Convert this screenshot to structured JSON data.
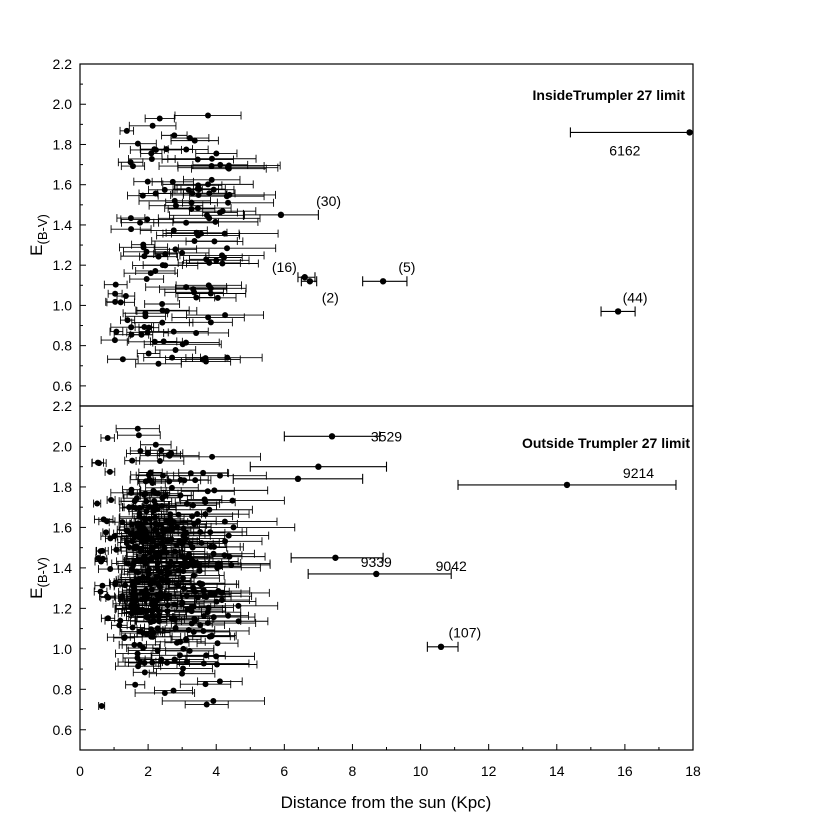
{
  "chart_data": [
    {
      "type": "scatter",
      "panel": "top",
      "title": "InsideTrumpler 27 limit",
      "xlabel": "",
      "ylabel": "E(B-V)",
      "xlim": [
        0,
        18
      ],
      "ylim": [
        0.5,
        2.2
      ],
      "y_ticks": [
        "0.6",
        "0.8",
        "1.0",
        "1.2",
        "1.4",
        "1.6",
        "1.8",
        "2.0",
        "2.2"
      ],
      "grid": false,
      "error_bars": "horizontal",
      "points": [
        {
          "x": 17.9,
          "y": 1.86,
          "xmin": 14.4,
          "xmax": 18.0
        },
        {
          "x": 5.9,
          "y": 1.45,
          "xmin": 4.8,
          "xmax": 7.0
        },
        {
          "x": 6.6,
          "y": 1.14,
          "xmin": 6.4,
          "xmax": 6.9
        },
        {
          "x": 6.75,
          "y": 1.12,
          "xmin": 6.5,
          "xmax": 6.95
        },
        {
          "x": 8.9,
          "y": 1.12,
          "xmin": 8.3,
          "xmax": 9.6
        },
        {
          "x": 15.8,
          "y": 0.97,
          "xmin": 15.3,
          "xmax": 16.3
        }
      ],
      "annotations": [
        {
          "text": "6162",
          "x": 16.0,
          "y": 1.77
        },
        {
          "text": "(30)",
          "x": 7.3,
          "y": 1.52
        },
        {
          "text": "(16)",
          "x": 6.0,
          "y": 1.19
        },
        {
          "text": "(2)",
          "x": 7.35,
          "y": 1.04
        },
        {
          "text": "(5)",
          "x": 9.6,
          "y": 1.19
        },
        {
          "text": "(44)",
          "x": 16.3,
          "y": 1.04
        }
      ]
    },
    {
      "type": "scatter",
      "panel": "bottom",
      "title": "Outside Trumpler 27 limit",
      "xlabel": "Distance from the sun (Kpc)",
      "ylabel": "E(B-V)",
      "xlim": [
        0,
        18
      ],
      "ylim": [
        0.5,
        2.2
      ],
      "x_ticks": [
        "0",
        "2",
        "4",
        "6",
        "8",
        "10",
        "12",
        "14",
        "16",
        "18"
      ],
      "y_ticks": [
        "0.6",
        "0.8",
        "1.0",
        "1.2",
        "1.4",
        "1.6",
        "1.8",
        "2.0",
        "2.2"
      ],
      "grid": false,
      "error_bars": "horizontal",
      "points": [
        {
          "x": 7.4,
          "y": 2.05,
          "xmin": 6.0,
          "xmax": 8.8
        },
        {
          "x": 14.3,
          "y": 1.81,
          "xmin": 11.1,
          "xmax": 17.5
        },
        {
          "x": 8.7,
          "y": 1.37,
          "xmin": 6.7,
          "xmax": 10.9
        },
        {
          "x": 7.5,
          "y": 1.45,
          "xmin": 6.2,
          "xmax": 8.9
        },
        {
          "x": 10.6,
          "y": 1.01,
          "xmin": 10.2,
          "xmax": 11.1
        },
        {
          "x": 7.0,
          "y": 1.9,
          "xmin": 5.0,
          "xmax": 9.0
        },
        {
          "x": 6.4,
          "y": 1.84,
          "xmin": 4.5,
          "xmax": 8.3
        }
      ],
      "annotations": [
        {
          "text": "3529",
          "x": 9.0,
          "y": 2.05
        },
        {
          "text": "9214",
          "x": 16.4,
          "y": 1.87
        },
        {
          "text": "9339",
          "x": 8.7,
          "y": 1.43
        },
        {
          "text": "9042",
          "x": 10.9,
          "y": 1.41
        },
        {
          "text": "(107)",
          "x": 11.3,
          "y": 1.08
        }
      ]
    }
  ]
}
